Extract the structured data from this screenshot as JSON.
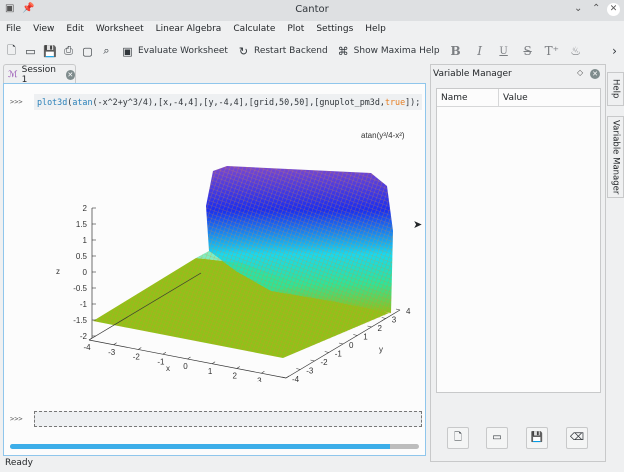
{
  "window": {
    "title": "Cantor"
  },
  "menu": [
    "File",
    "View",
    "Edit",
    "Worksheet",
    "Linear Algebra",
    "Calculate",
    "Plot",
    "Settings",
    "Help"
  ],
  "toolbar": {
    "evaluate": "Evaluate Worksheet",
    "restart": "Restart Backend",
    "help": "Show Maxima Help"
  },
  "tab": {
    "label": "Session 1"
  },
  "session": {
    "prompt": ">>>",
    "code": {
      "fn": "plot3d",
      "inner_fn": "atan",
      "args": "(-x^2+y^3/4),[x,-4,4],[y,-4,4],[grid,50,50],[gnuplot_pm3d,",
      "bool": "true",
      "end": "]);"
    },
    "plot": {
      "legend": "atan(y³/4-x²)",
      "z_label": "z",
      "x_label": "x",
      "y_label": "y",
      "z_ticks": [
        "2",
        "1.5",
        "1",
        "0.5",
        "0",
        "-0.5",
        "-1",
        "-1.5",
        "-2"
      ],
      "x_ticks": [
        "-4",
        "-3",
        "-2",
        "-1",
        "0",
        "1",
        "2",
        "3",
        "4"
      ],
      "y_ticks": [
        "-4",
        "-3",
        "-2",
        "-1",
        "0",
        "1",
        "2",
        "3",
        "4"
      ],
      "colors": {
        "top": "#6a3fd8",
        "blue": "#1a2ef0",
        "cyan": "#19e8f0",
        "green": "#2fe39a",
        "base": "#8fc21a",
        "mesh": "#e08a2a"
      }
    },
    "progress": 0.93
  },
  "variable_manager": {
    "title": "Variable Manager",
    "columns": [
      "Name",
      "Value"
    ]
  },
  "side_tabs": [
    "Help",
    "Variable Manager"
  ],
  "status": "Ready"
}
